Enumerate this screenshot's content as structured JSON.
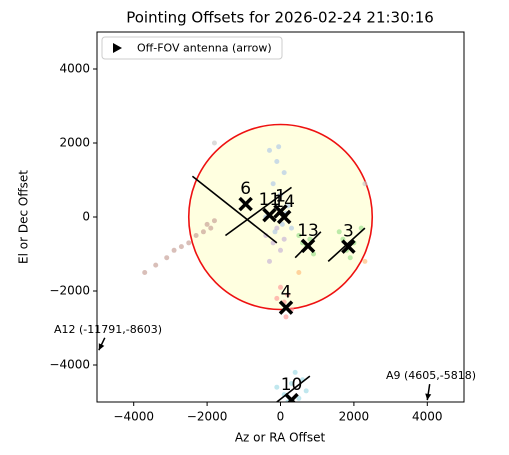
{
  "chart_data": {
    "type": "scatter",
    "title": "Pointing Offsets for 2026-02-24 21:30:16",
    "x_label": "Az or RA Offset",
    "y_label": "El or Dec Offset",
    "xlim": [
      -5000,
      5000
    ],
    "ylim": [
      -5000,
      5000
    ],
    "xticks": [
      {
        "value": -4000,
        "label": "−4000"
      },
      {
        "value": -2000,
        "label": "−2000"
      },
      0,
      2000,
      4000
    ],
    "yticks": [
      {
        "value": -4000,
        "label": "−4000"
      },
      {
        "value": -2000,
        "label": "−2000"
      },
      0,
      2000,
      4000
    ],
    "circle": {
      "x": 0,
      "y": 0,
      "radius": 2500,
      "edgecolor": "#ee1111",
      "facecolor": "#ffffe0"
    },
    "legend": {
      "label": "Off-FOV antenna (arrow)",
      "position": "upper left"
    },
    "clouds": [
      {
        "color": "#aec7e8",
        "x": [
          -300,
          -100,
          100,
          -200,
          0,
          200,
          -400,
          50,
          -150,
          150,
          -50,
          300
        ],
        "y": [
          1800,
          1500,
          1200,
          900,
          600,
          300,
          0,
          -200,
          -400,
          100,
          1900,
          -300
        ]
      },
      {
        "color": "#c5b0d5",
        "x": [
          -400,
          -200,
          0,
          -300,
          -100,
          100
        ],
        "y": [
          -500,
          -700,
          -900,
          -1200,
          -300,
          -600
        ]
      },
      {
        "color": "#98df8a",
        "x": [
          500,
          700,
          900,
          600,
          800,
          1600,
          1800,
          2000,
          1900,
          1700,
          2200
        ],
        "y": [
          -500,
          -800,
          -1000,
          -700,
          -600,
          -400,
          -900,
          -700,
          -1100,
          -600,
          -300
        ]
      },
      {
        "color": "#ff9896",
        "x": [
          0,
          200,
          100,
          300,
          -100,
          150
        ],
        "y": [
          -1900,
          -2100,
          -2300,
          -2500,
          -2200,
          -2700
        ]
      },
      {
        "color": "#c49c94",
        "x": [
          -3700,
          -3400,
          -3100,
          -2900,
          -2700,
          -2500,
          -2300,
          -2100,
          -1900,
          -2000,
          -1800
        ],
        "y": [
          -1500,
          -1300,
          -1100,
          -900,
          -800,
          -700,
          -500,
          -400,
          -300,
          -200,
          -100
        ]
      },
      {
        "color": "#9edae5",
        "x": [
          -100,
          100,
          300,
          500,
          700,
          200,
          600,
          400
        ],
        "y": [
          -4600,
          -4800,
          -4500,
          -4900,
          -4700,
          -5000,
          -4400,
          -4200
        ]
      },
      {
        "color": "#ffbb78",
        "x": [
          500,
          2300
        ],
        "y": [
          -1500,
          -1200
        ]
      },
      {
        "color": "#c7c7c7",
        "x": [
          -1800,
          2300
        ],
        "y": [
          2000,
          900
        ]
      }
    ],
    "lines": [
      {
        "x": [
          -2400,
          -100
        ],
        "y": [
          1100,
          -700
        ]
      },
      {
        "x": [
          -1500,
          300
        ],
        "y": [
          -500,
          800
        ]
      },
      {
        "x": [
          1300,
          2300
        ],
        "y": [
          -1200,
          -300
        ]
      },
      {
        "x": [
          -100,
          800
        ],
        "y": [
          -5000,
          -4300
        ]
      },
      {
        "x": [
          400,
          1100
        ],
        "y": [
          -1100,
          -400
        ]
      }
    ],
    "antennas": [
      {
        "label": "6",
        "x": -950,
        "y": 350
      },
      {
        "label": "11",
        "x": -300,
        "y": 50
      },
      {
        "label": "1",
        "x": 0,
        "y": 150
      },
      {
        "label": "14",
        "x": 100,
        "y": 0
      },
      {
        "label": "13",
        "x": 750,
        "y": -780
      },
      {
        "label": "3",
        "x": 1850,
        "y": -800
      },
      {
        "label": "4",
        "x": 150,
        "y": -2450
      },
      {
        "label": "10",
        "x": 300,
        "y": -4950
      }
    ],
    "arrows": [
      {
        "label": "A12 (-11791,-8603)",
        "text_x": -4700,
        "text_y": -3050,
        "x": -4950,
        "y": -3600
      },
      {
        "label": "A9 (4605,-5818)",
        "text_x": 4100,
        "text_y": -4300,
        "x": 4000,
        "y": -4950
      }
    ]
  }
}
